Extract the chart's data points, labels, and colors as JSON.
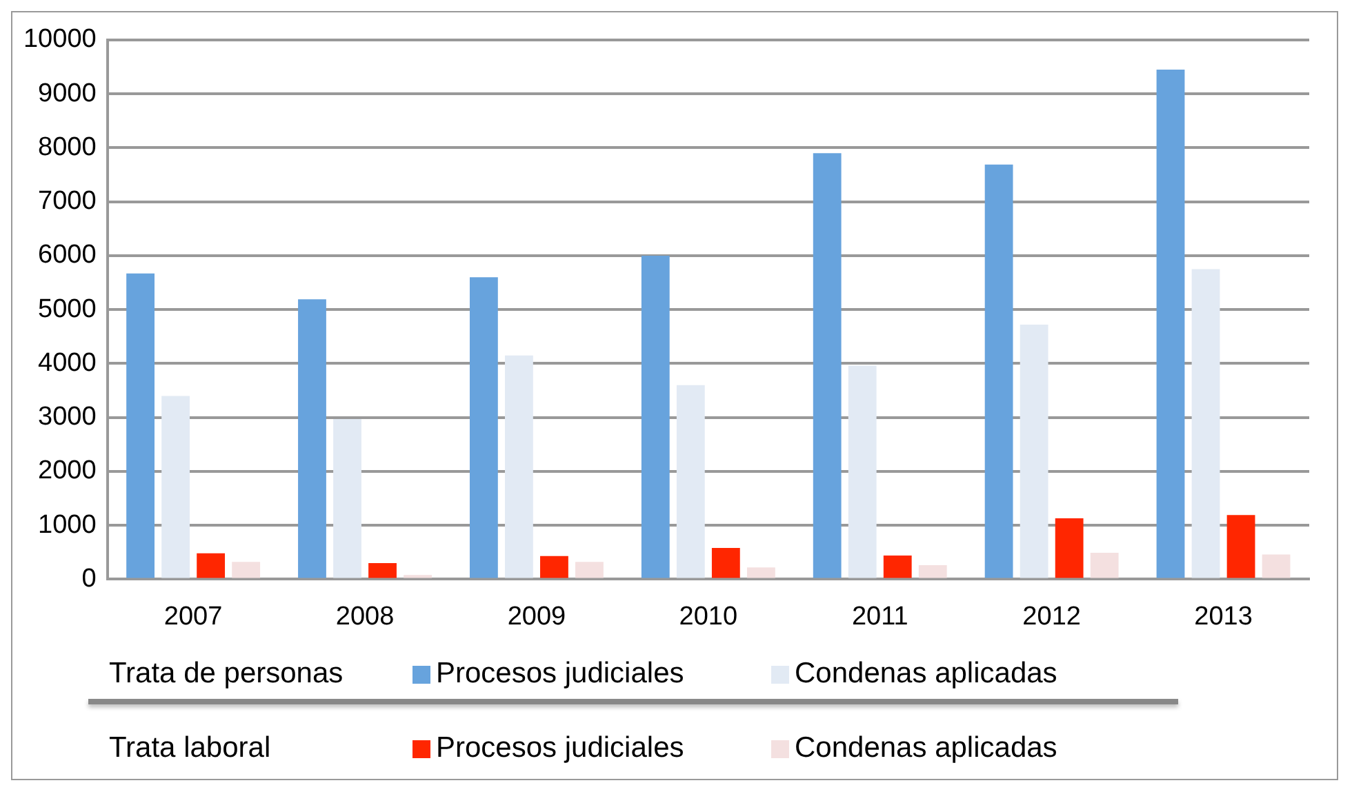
{
  "chart_data": {
    "type": "bar",
    "categories": [
      "2007",
      "2008",
      "2009",
      "2010",
      "2011",
      "2012",
      "2013"
    ],
    "series": [
      {
        "name": "Procesos judiciales",
        "color": "#67a3dd",
        "values": [
          5670,
          5190,
          5600,
          6000,
          7900,
          7690,
          9450
        ]
      },
      {
        "name": "Condenas aplicadas",
        "color": "#e2eaf4",
        "values": [
          3400,
          2970,
          4150,
          3600,
          3960,
          4720,
          5750
        ]
      },
      {
        "name": "Procesos judiciales",
        "color": "#ff2600",
        "values": [
          480,
          300,
          430,
          580,
          440,
          1130,
          1190
        ]
      },
      {
        "name": "Condenas aplicadas",
        "color": "#f4e0e0",
        "values": [
          320,
          80,
          320,
          220,
          260,
          490,
          460
        ]
      }
    ],
    "annotations": [
      "Trata de personas",
      "Trata laboral"
    ],
    "ylim": [
      0,
      10000
    ],
    "yticks": [
      0,
      1000,
      2000,
      3000,
      4000,
      5000,
      6000,
      7000,
      8000,
      9000,
      10000
    ],
    "grid": "y",
    "legend": "bottom"
  }
}
